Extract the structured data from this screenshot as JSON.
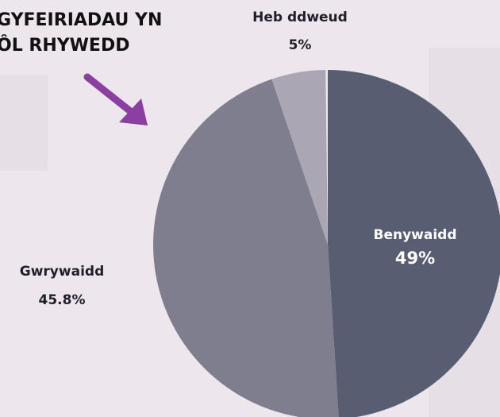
{
  "chart_data": {
    "type": "pie",
    "title": [
      "GYFEIRIADAU YN",
      "ÔL RHYWEDD"
    ],
    "categories": [
      "Benywaidd",
      "Gwrywaidd",
      "Heb ddweud"
    ],
    "values": [
      49,
      45.8,
      5
    ],
    "value_labels": [
      "49%",
      "45.8%",
      "5%"
    ],
    "colors": [
      "#585d72",
      "#7f7e8e",
      "#aaa6b4"
    ]
  }
}
